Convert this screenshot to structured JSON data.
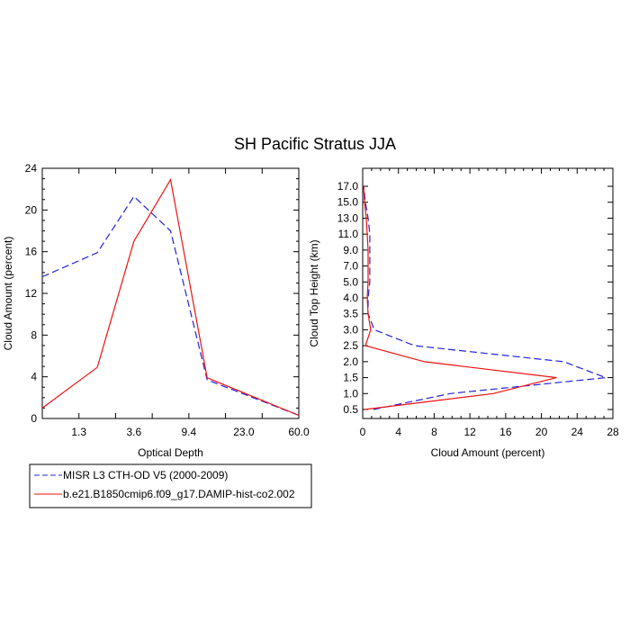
{
  "title": "SH Pacific Stratus JJA",
  "legend": [
    {
      "label": "MISR L3 CTH-OD V5 (2000-2009)",
      "color": "#2222dd",
      "dash": true
    },
    {
      "label": "b.e21.B1850cmip6.f09_g17.DAMIP-hist-co2.002",
      "color": "#ee1111",
      "dash": false
    }
  ],
  "chart_data": [
    {
      "type": "line",
      "xlabel": "Optical Depth",
      "ylabel": "Cloud Amount (percent)",
      "x_tick_labels": [
        "1.3",
        "3.6",
        "9.4",
        "23.0",
        "60.0"
      ],
      "x_bins": 7,
      "ylim": [
        0,
        24
      ],
      "y_ticks": [
        0,
        4,
        8,
        12,
        16,
        20,
        24
      ],
      "series": [
        {
          "name": "MISR L3 CTH-OD V5 (2000-2009)",
          "values": [
            13.6,
            15.9,
            21.3,
            18.0,
            3.7,
            0.3
          ]
        },
        {
          "name": "b.e21.B1850cmip6.f09_g17.DAMIP-hist-co2.002",
          "values": [
            1.0,
            4.9,
            17.0,
            22.9,
            3.9,
            0.3
          ]
        }
      ]
    },
    {
      "type": "line",
      "xlabel": "Cloud Amount (percent)",
      "ylabel": "Cloud Top Height (km)",
      "xlim": [
        0,
        28
      ],
      "x_ticks": [
        0,
        4,
        8,
        12,
        16,
        20,
        24,
        28
      ],
      "ylim": [
        0.25,
        18
      ],
      "y_tick_labels": [
        "0.5",
        "1.0",
        "1.5",
        "2.0",
        "2.5",
        "3.0",
        "3.5",
        "4.0",
        "5.0",
        "7.0",
        "9.0",
        "11.0",
        "13.0",
        "15.0",
        "17.0"
      ],
      "series": [
        {
          "name": "MISR L3 CTH-OD V5 (2000-2009)",
          "values": [
            1.2,
            9.8,
            27.2,
            22.5,
            5.8,
            1.3,
            0.6,
            0.6,
            0.8,
            0.8,
            0.8,
            0.8,
            0.6,
            0.3,
            0.1
          ]
        },
        {
          "name": "b.e21.B1850cmip6.f09_g17.DAMIP-hist-co2.002",
          "values": [
            0.2,
            14.6,
            21.7,
            6.9,
            0.3,
            0.9,
            0.6,
            0.5,
            0.6,
            0.6,
            0.6,
            0.5,
            0.4,
            0.2,
            0.1
          ]
        }
      ]
    }
  ]
}
